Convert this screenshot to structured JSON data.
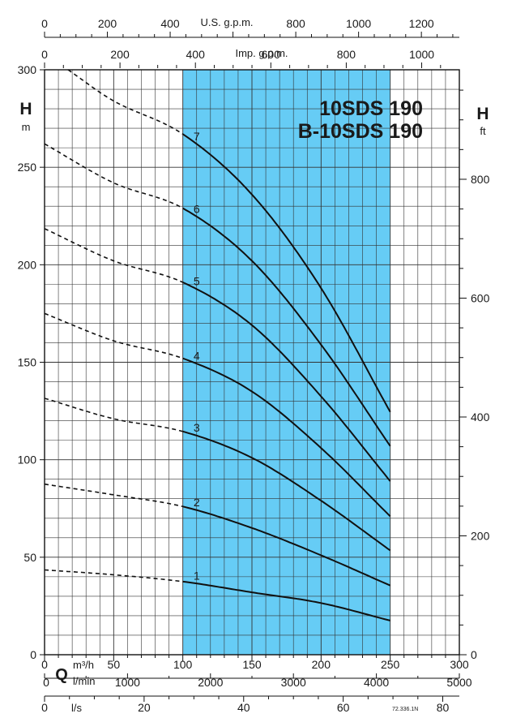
{
  "chart_data": {
    "type": "line",
    "title_lines": [
      "10SDS 190",
      "B-10SDS 190"
    ],
    "left_axis": {
      "label": "H",
      "unit": "m",
      "range": [
        0,
        300
      ],
      "ticks": [
        0,
        50,
        100,
        150,
        200,
        250,
        300
      ]
    },
    "right_axis": {
      "label": "H",
      "unit": "ft",
      "range_ft": [
        0,
        984.25
      ],
      "ticks": [
        0,
        200,
        400,
        600,
        800
      ]
    },
    "x_axis": {
      "label": "Q",
      "unit": "m³/h",
      "range": [
        0,
        300
      ],
      "ticks": [
        0,
        50,
        100,
        150,
        200,
        250,
        300
      ]
    },
    "x_lmin": {
      "unit": "l/min",
      "ticks": [
        0,
        1000,
        2000,
        3000,
        4000,
        5000
      ]
    },
    "x_ls": {
      "unit": "l/s",
      "ticks": [
        0,
        20,
        40,
        60,
        80
      ]
    },
    "top_usgpm": {
      "unit": "U.S. g.p.m.",
      "ticks": [
        0,
        200,
        400,
        800,
        1000,
        1200
      ]
    },
    "top_impgpm": {
      "unit": "Imp. g.p.m.",
      "ticks": [
        0,
        200,
        400,
        600,
        800,
        1000
      ]
    },
    "operating_range": [
      100,
      250
    ],
    "grid": true,
    "series": [
      {
        "name": "1",
        "x": [
          0,
          50,
          100,
          150,
          200,
          250
        ],
        "y": [
          43.5,
          41,
          37.5,
          32,
          26.5,
          17.5
        ]
      },
      {
        "name": "2",
        "x": [
          0,
          50,
          100,
          150,
          200,
          250
        ],
        "y": [
          87.5,
          82,
          76,
          65,
          51,
          35.5
        ]
      },
      {
        "name": "3",
        "x": [
          0,
          50,
          100,
          150,
          200,
          250
        ],
        "y": [
          131.5,
          121,
          114.5,
          101,
          79,
          53.5
        ]
      },
      {
        "name": "4",
        "x": [
          0,
          50,
          100,
          150,
          200,
          250
        ],
        "y": [
          175,
          161,
          152,
          135,
          106,
          71
        ]
      },
      {
        "name": "5",
        "x": [
          0,
          50,
          100,
          150,
          200,
          250
        ],
        "y": [
          218.5,
          202,
          191,
          169,
          132.5,
          89
        ]
      },
      {
        "name": "6",
        "x": [
          0,
          50,
          100,
          150,
          200,
          250
        ],
        "y": [
          262,
          242,
          229,
          202,
          159,
          107
        ]
      },
      {
        "name": "7",
        "x": [
          17,
          50,
          100,
          150,
          200,
          250
        ],
        "y": [
          300,
          284,
          267,
          236,
          188,
          124.5
        ]
      }
    ],
    "footnote": "72.336.1N"
  }
}
